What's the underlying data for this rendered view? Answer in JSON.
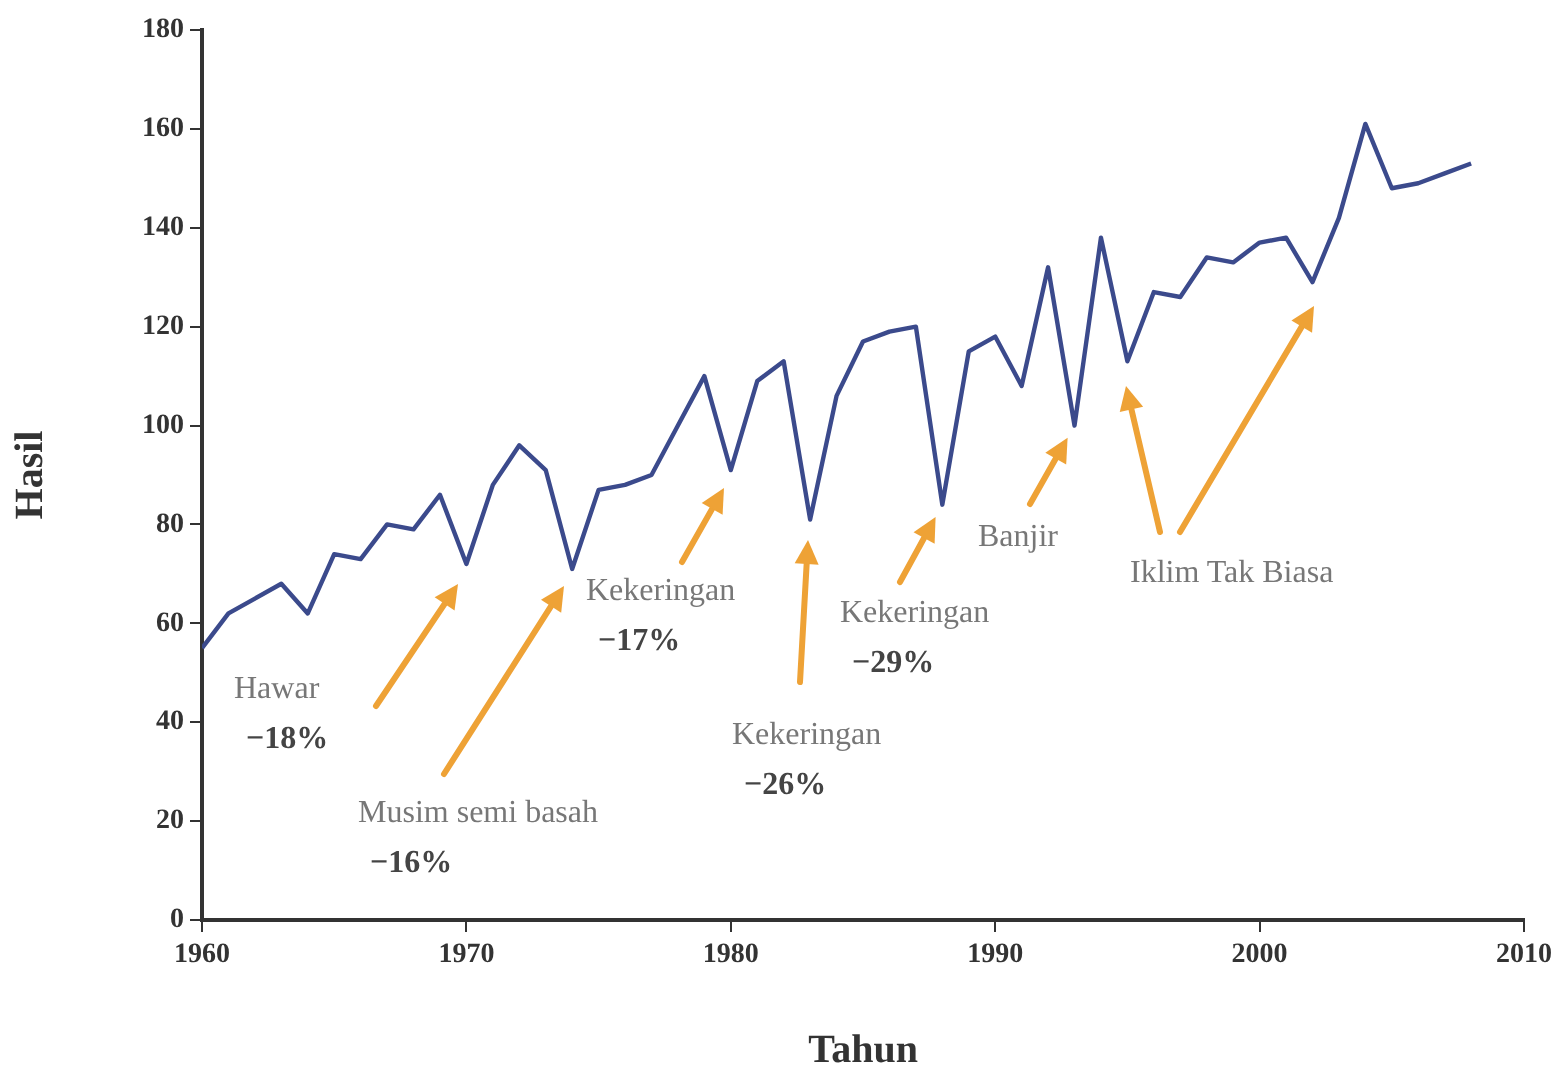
{
  "chart_data": {
    "type": "line",
    "xlabel": "Tahun",
    "ylabel": "Hasil",
    "x": [
      1960,
      1961,
      1962,
      1963,
      1964,
      1965,
      1966,
      1967,
      1968,
      1969,
      1970,
      1971,
      1972,
      1973,
      1974,
      1975,
      1976,
      1977,
      1978,
      1979,
      1980,
      1981,
      1982,
      1983,
      1984,
      1985,
      1986,
      1987,
      1988,
      1989,
      1990,
      1991,
      1992,
      1993,
      1994,
      1995,
      1996,
      1997,
      1998,
      1999,
      2000,
      2001,
      2002,
      2003,
      2004,
      2005,
      2006,
      2007,
      2008
    ],
    "series": [
      {
        "color": "#3b4a8c",
        "values": [
          55,
          62,
          65,
          68,
          62,
          74,
          73,
          80,
          79,
          86,
          72,
          88,
          96,
          91,
          71,
          87,
          88,
          90,
          100,
          110,
          91,
          109,
          113,
          81,
          106,
          117,
          119,
          120,
          84,
          115,
          118,
          108,
          132,
          100,
          138,
          113,
          127,
          126,
          134,
          133,
          137,
          138,
          129,
          142,
          161,
          148,
          149,
          151,
          153
        ]
      }
    ],
    "xlim": [
      1960,
      2010
    ],
    "xticks": [
      1960,
      1970,
      1980,
      1990,
      2000,
      2010
    ],
    "ylim": [
      0,
      180
    ],
    "yticks": [
      0,
      20,
      40,
      60,
      80,
      100,
      120,
      140,
      160,
      180
    ],
    "grid": false,
    "legend": false,
    "marker": "none",
    "line_style": "solid",
    "annotations": [
      "Hawar\n−18%",
      "Musim semi basah\n−16%",
      "Kekeringan\n−17%",
      "Kekeringan\n−26%",
      {
        "text": "Kekeringan\n−29%",
        "x": 1988,
        "y": 84
      },
      {
        "text": "Banjir",
        "x": 1993,
        "y": 100
      },
      "Iklim Tak Biasa"
    ]
  }
}
